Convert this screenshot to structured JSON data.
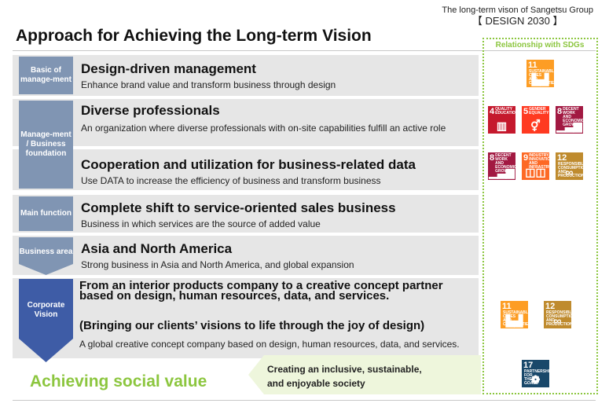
{
  "header": {
    "context_line1": "The long-term vison of Sangetsu Group",
    "context_line2": "【 DESIGN 2030 】",
    "title": "Approach for Achieving the Long-term Vision",
    "sdg_column_title": "Relationship with SDGs"
  },
  "rows": [
    {
      "side_label": "Basic of manage-ment",
      "title": "Design-driven management",
      "description": "Enhance brand value and transform business through design"
    },
    {
      "side_label": "Manage-ment / Business foundation",
      "title": "Diverse professionals",
      "description": "An organization where diverse professionals with on-site capabilities fulfill an active role"
    },
    {
      "title": "Cooperation and utilization for business-related data",
      "description": "Use DATA to increase the efficiency of business and transform business"
    },
    {
      "side_label": "Main function",
      "title": "Complete shift to service-oriented sales business",
      "description": "Business in which services are the source of added value"
    },
    {
      "side_label": "Business area",
      "title": "Asia and North America",
      "description": "Strong business in Asia and North America, and global expansion"
    }
  ],
  "vision": {
    "side_label": "Corporate Vision",
    "title": "From an interior products company to a creative concept partner based on design, human resources, data, and services.",
    "subtitle": "(Bringing our clients’ visions to life through the joy of design)",
    "description": "A global creative concept company based on design, human resources, data, and services."
  },
  "social": {
    "label": "Achieving social value",
    "message_line1": "Creating an inclusive, sustainable,",
    "message_line2": "and enjoyable society"
  },
  "sdg_icons": {
    "row1": [
      {
        "number": "11",
        "caption": "SUSTAINABLE CITIES AND COMMUNITIES",
        "color": "#fd9d24",
        "icon": "city-icon"
      }
    ],
    "row2": [
      {
        "number": "4",
        "caption": "QUALITY EDUCATION",
        "color": "#c5192d",
        "icon": "book-icon"
      },
      {
        "number": "5",
        "caption": "GENDER EQUALITY",
        "color": "#ff3a21",
        "icon": "gender-icon"
      },
      {
        "number": "8",
        "caption": "DECENT WORK AND ECONOMIC GROWTH",
        "color": "#a21942",
        "icon": "growth-chart-icon"
      }
    ],
    "row3": [
      {
        "number": "8",
        "caption": "DECENT WORK AND ECONOMIC GROWTH",
        "color": "#a21942",
        "icon": "growth-chart-icon"
      },
      {
        "number": "9",
        "caption": "INDUSTRY, INNOVATION AND INFRASTRUCTURE",
        "color": "#fd6925",
        "icon": "cubes-icon"
      },
      {
        "number": "12",
        "caption": "RESPONSIBLE CONSUMPTION AND PRODUCTION",
        "color": "#bf8b2e",
        "icon": "infinity-icon"
      }
    ],
    "vision": [
      {
        "number": "11",
        "caption": "SUSTAINABLE CITIES AND COMMUNITIES",
        "color": "#fd9d24",
        "icon": "city-icon"
      },
      {
        "number": "12",
        "caption": "RESPONSIBLE CONSUMPTION AND PRODUCTION",
        "color": "#bf8b2e",
        "icon": "infinity-icon"
      }
    ],
    "social": [
      {
        "number": "17",
        "caption": "PARTNERSHIPS FOR THE GOALS",
        "color": "#19486a",
        "icon": "partnership-rings-icon"
      }
    ]
  },
  "colors": {
    "band": "#e6e6e6",
    "side_label": "#8095b3",
    "vision_arrow": "#3e5ca6",
    "accent_green": "#8cc63f",
    "social_band": "#eef6dc"
  }
}
